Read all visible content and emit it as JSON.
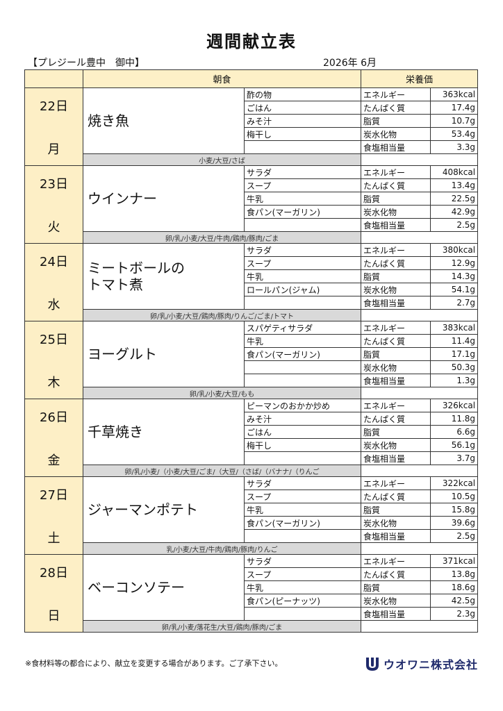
{
  "title": "週間献立表",
  "facility": "【プレジール豊中　御中】",
  "period": "2026年 6月",
  "headers": {
    "breakfast": "朝食",
    "nutrition": "栄養価"
  },
  "days": [
    {
      "date": "22日",
      "weekday": "月",
      "main": "焼き魚",
      "sides": [
        "酢の物",
        "ごはん",
        "みそ汁",
        "梅干し",
        ""
      ],
      "nutrition": [
        {
          "label": "エネルギー",
          "value": "363kcal"
        },
        {
          "label": "たんぱく質",
          "value": "17.4g"
        },
        {
          "label": "脂質",
          "value": "10.7g"
        },
        {
          "label": "炭水化物",
          "value": "53.4g"
        },
        {
          "label": "食塩相当量",
          "value": "3.3g"
        }
      ],
      "allergens": "小麦/大豆/さば"
    },
    {
      "date": "23日",
      "weekday": "火",
      "main": "ウインナー",
      "sides": [
        "サラダ",
        "スープ",
        "牛乳",
        "食パン(マーガリン)",
        ""
      ],
      "nutrition": [
        {
          "label": "エネルギー",
          "value": "408kcal"
        },
        {
          "label": "たんぱく質",
          "value": "13.4g"
        },
        {
          "label": "脂質",
          "value": "22.5g"
        },
        {
          "label": "炭水化物",
          "value": "42.9g"
        },
        {
          "label": "食塩相当量",
          "value": "2.5g"
        }
      ],
      "allergens": "卵/乳/小麦/大豆/牛肉/鶏肉/豚肉/ごま"
    },
    {
      "date": "24日",
      "weekday": "水",
      "main": "ミートボールの\nトマト煮",
      "sides": [
        "サラダ",
        "スープ",
        "牛乳",
        "ロールパン(ジャム)",
        ""
      ],
      "nutrition": [
        {
          "label": "エネルギー",
          "value": "380kcal"
        },
        {
          "label": "たんぱく質",
          "value": "12.9g"
        },
        {
          "label": "脂質",
          "value": "14.3g"
        },
        {
          "label": "炭水化物",
          "value": "54.1g"
        },
        {
          "label": "食塩相当量",
          "value": "2.7g"
        }
      ],
      "allergens": "卵/乳/小麦/大豆/鶏肉/豚肉/りんご/ごま/トマト"
    },
    {
      "date": "25日",
      "weekday": "木",
      "main": "ヨーグルト",
      "sides": [
        "スパゲティサラダ",
        "牛乳",
        "食パン(マーガリン)",
        "",
        ""
      ],
      "nutrition": [
        {
          "label": "エネルギー",
          "value": "383kcal"
        },
        {
          "label": "たんぱく質",
          "value": "11.4g"
        },
        {
          "label": "脂質",
          "value": "17.1g"
        },
        {
          "label": "炭水化物",
          "value": "50.3g"
        },
        {
          "label": "食塩相当量",
          "value": "1.3g"
        }
      ],
      "allergens": "卵/乳/小麦/大豆/もも"
    },
    {
      "date": "26日",
      "weekday": "金",
      "main": "千草焼き",
      "sides": [
        "ピーマンのおかか炒め",
        "みそ汁",
        "ごはん",
        "梅干し",
        ""
      ],
      "nutrition": [
        {
          "label": "エネルギー",
          "value": "326kcal"
        },
        {
          "label": "たんぱく質",
          "value": "11.8g"
        },
        {
          "label": "脂質",
          "value": "6.6g"
        },
        {
          "label": "炭水化物",
          "value": "56.1g"
        },
        {
          "label": "食塩相当量",
          "value": "3.7g"
        }
      ],
      "allergens": "卵/乳/小麦/（小麦/大豆/ごま/（大豆/（さば/（バナナ/（りんご"
    },
    {
      "date": "27日",
      "weekday": "土",
      "main": "ジャーマンポテト",
      "sides": [
        "サラダ",
        "スープ",
        "牛乳",
        "食パン(マーガリン)",
        ""
      ],
      "nutrition": [
        {
          "label": "エネルギー",
          "value": "322kcal"
        },
        {
          "label": "たんぱく質",
          "value": "10.5g"
        },
        {
          "label": "脂質",
          "value": "15.8g"
        },
        {
          "label": "炭水化物",
          "value": "39.6g"
        },
        {
          "label": "食塩相当量",
          "value": "2.5g"
        }
      ],
      "allergens": "乳/小麦/大豆/牛肉/鶏肉/豚肉/りんご"
    },
    {
      "date": "28日",
      "weekday": "日",
      "main": "ベーコンソテー",
      "sides": [
        "サラダ",
        "スープ",
        "牛乳",
        "食パン(ピーナッツ)",
        ""
      ],
      "nutrition": [
        {
          "label": "エネルギー",
          "value": "371kcal"
        },
        {
          "label": "たんぱく質",
          "value": "13.8g"
        },
        {
          "label": "脂質",
          "value": "18.6g"
        },
        {
          "label": "炭水化物",
          "value": "42.5g"
        },
        {
          "label": "食塩相当量",
          "value": "2.3g"
        }
      ],
      "allergens": "卵/乳/小麦/落花生/大豆/鶏肉/豚肉/ごま"
    }
  ],
  "footer": {
    "note": "※食材料等の都合により、献立を変更する場合があります。ご了承下さい。",
    "company": "ウオワニ株式会社"
  }
}
